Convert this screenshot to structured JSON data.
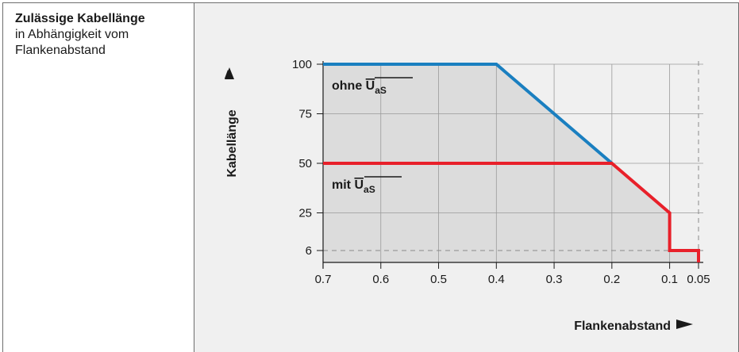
{
  "description": {
    "title": "Zulässige Kabellänge",
    "line2": "in Abhängigkeit vom",
    "line3": "Flankenabstand"
  },
  "chart_data": {
    "type": "line",
    "xlabel": "Flankenabstand",
    "ylabel": "Kabellänge",
    "x_ticks": [
      0.7,
      0.6,
      0.5,
      0.4,
      0.3,
      0.2,
      0.1,
      0.05
    ],
    "x_tick_labels": [
      "0.7",
      "0.6",
      "0.5",
      "0.4",
      "0.3",
      "0.2",
      "0.1",
      "0.05"
    ],
    "y_ticks": [
      100,
      75,
      50,
      25,
      6
    ],
    "y_tick_labels": [
      "100",
      "75",
      "50",
      "25",
      "6"
    ],
    "xlim": [
      0.7,
      0.05
    ],
    "ylim": [
      0,
      100
    ],
    "x_reversed": true,
    "grid": true,
    "series": [
      {
        "name": "ohne UaS",
        "label_main": "ohne ",
        "label_overline": "U",
        "label_sub": "aS",
        "color": "#1a7fc0",
        "x": [
          0.7,
          0.4,
          0.2
        ],
        "y": [
          100,
          100,
          50
        ]
      },
      {
        "name": "mit UaS",
        "label_main": "mit ",
        "label_overline": "U",
        "label_sub": "aS",
        "color": "#e8202a",
        "x": [
          0.7,
          0.2,
          0.1,
          0.1,
          0.05,
          0.05
        ],
        "y": [
          50,
          50,
          25,
          6,
          6,
          0
        ]
      }
    ],
    "reference_lines": [
      {
        "axis": "y",
        "value": 6,
        "style": "dashed"
      },
      {
        "axis": "x",
        "value": 0.05,
        "style": "dashed"
      }
    ],
    "fill_color": "#dcdcdc"
  }
}
